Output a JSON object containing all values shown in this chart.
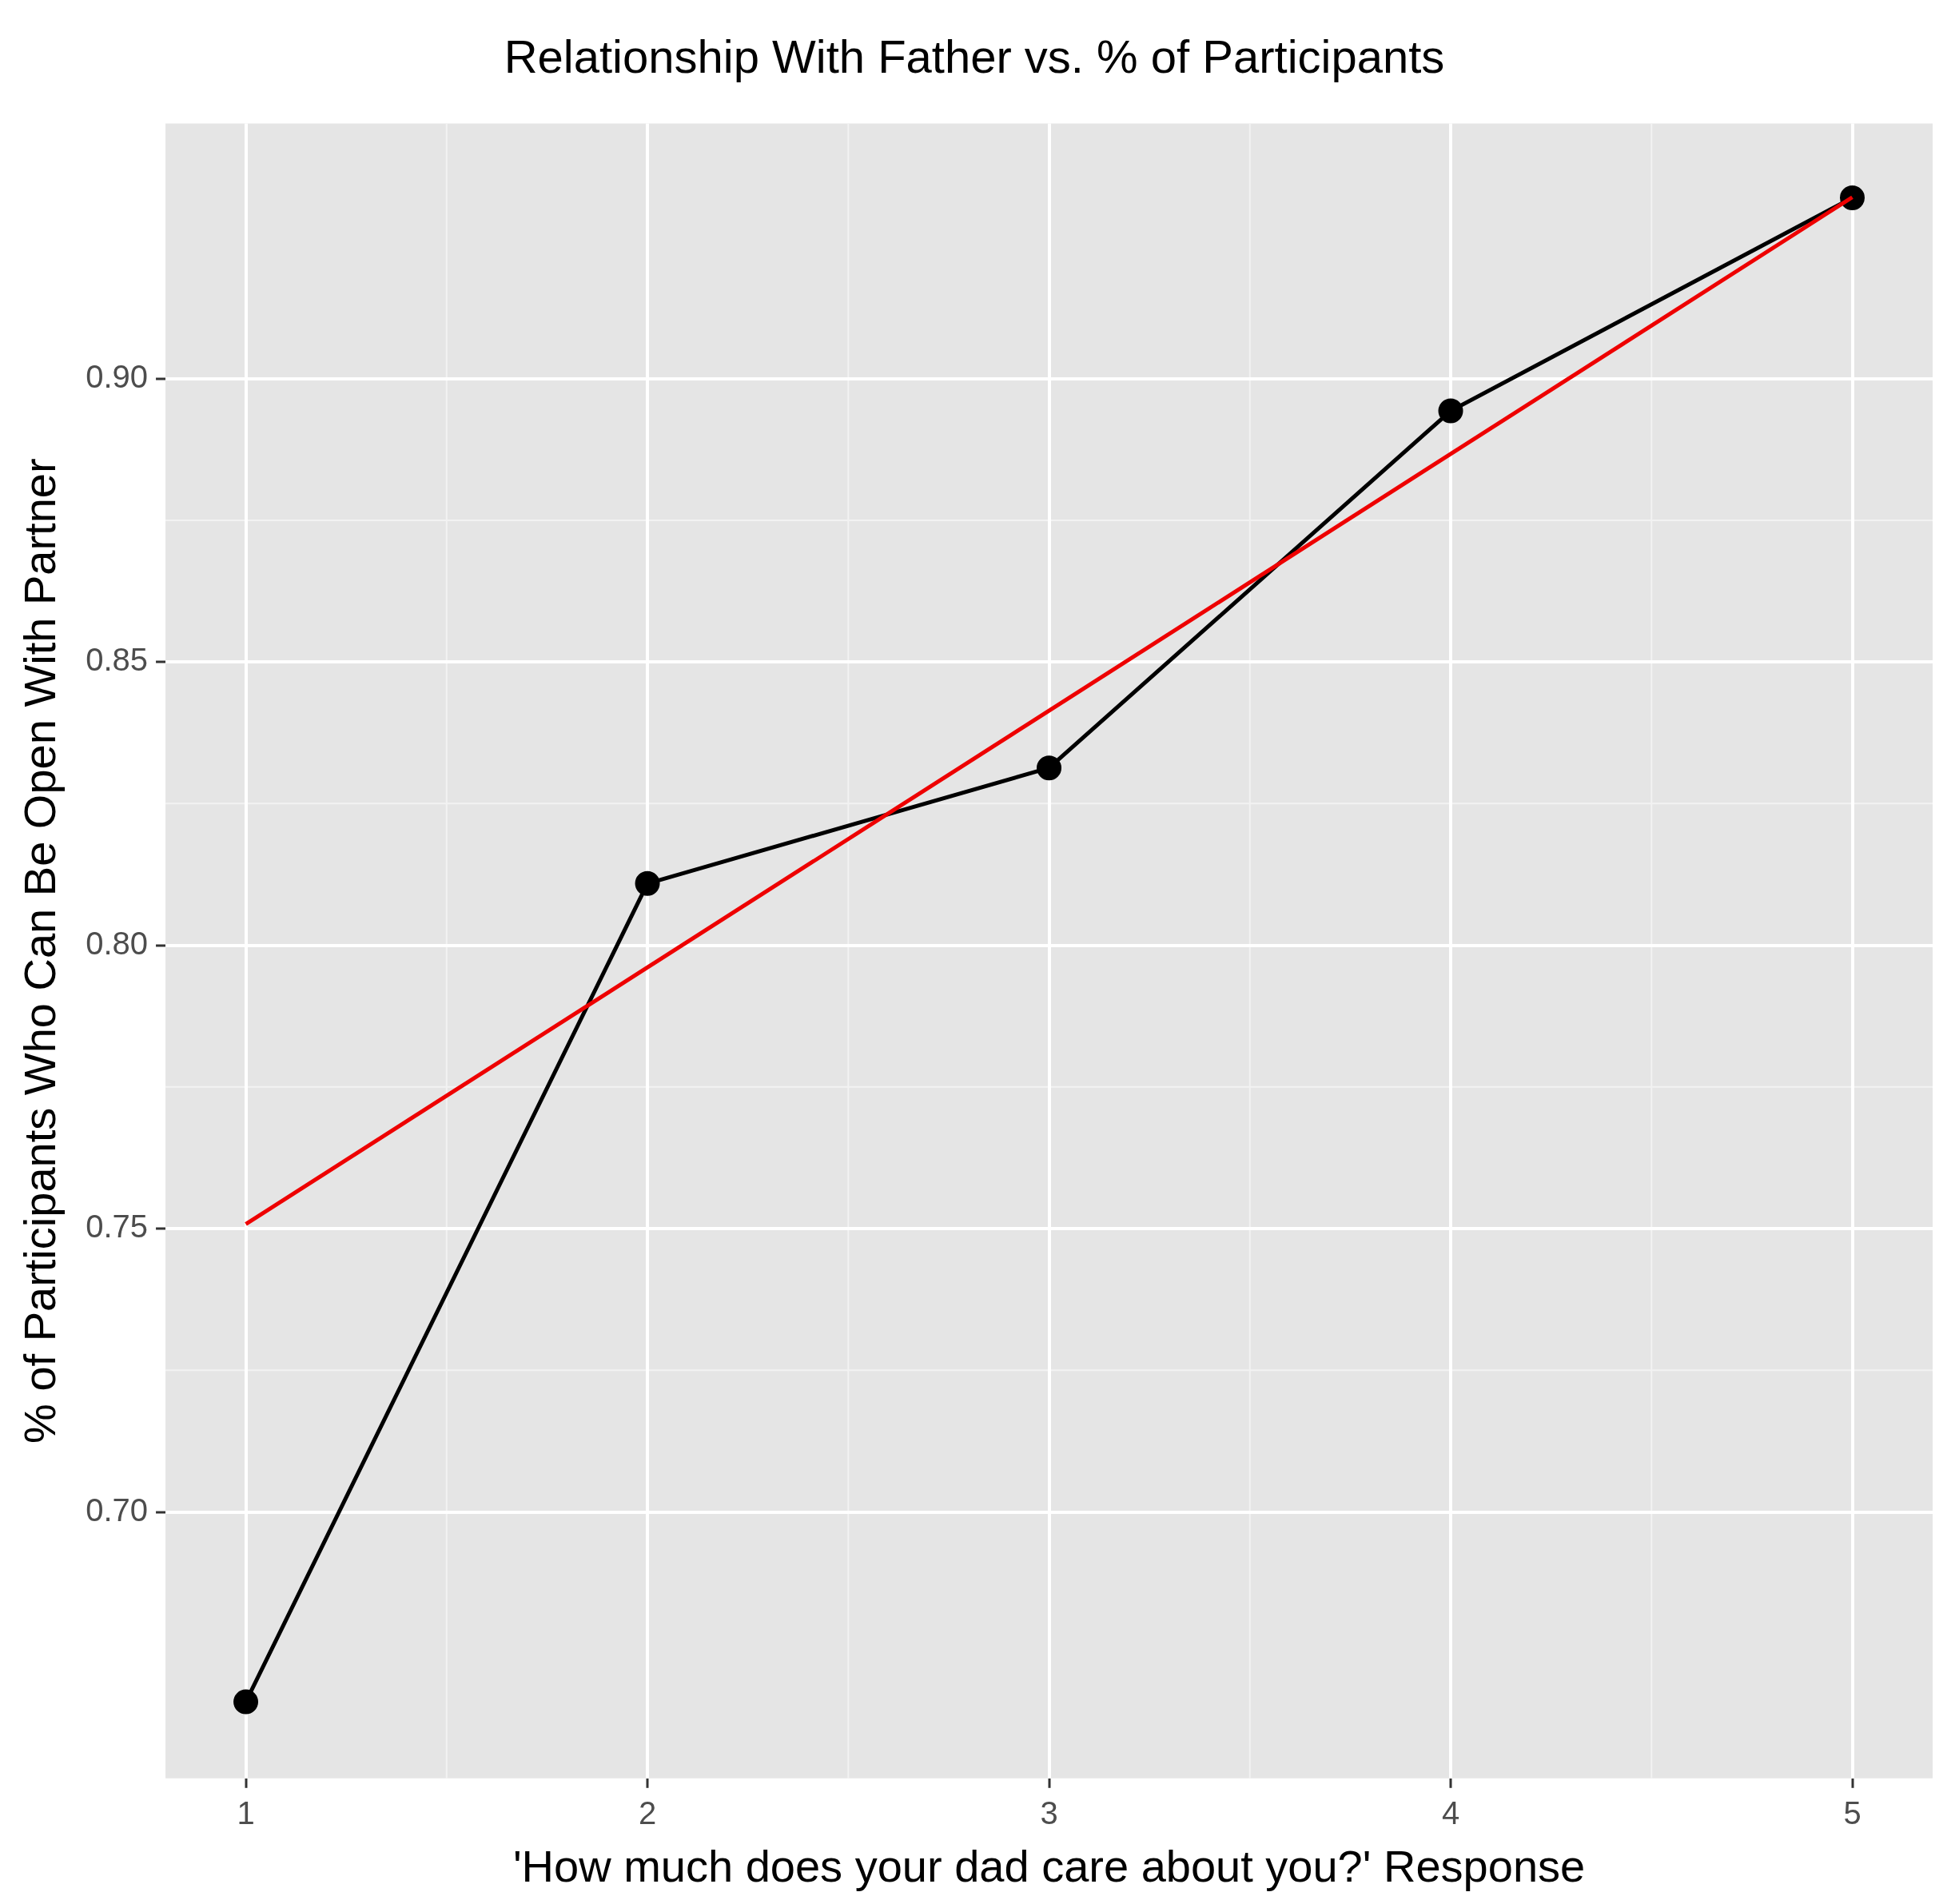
{
  "chart_data": {
    "type": "line",
    "title": "Relationship With Father vs. % of Participants",
    "xlabel": "'How much does your dad care about you?' Response",
    "ylabel": "% of Participants Who Can Be Open With Partner",
    "x": [
      1,
      2,
      3,
      4,
      5
    ],
    "series": [
      {
        "color": "#000000",
        "values": [
          0.6665,
          0.8109,
          0.8313,
          0.8943,
          0.9319
        ],
        "marker": "circle"
      },
      {
        "type": "line",
        "x": [
          1,
          5
        ],
        "color": "#ee0000",
        "values": [
          0.7508,
          0.932
        ],
        "marker": "none"
      }
    ],
    "xlim": [
      0.8,
      5.2
    ],
    "xticks": [
      1,
      2,
      3,
      4,
      5
    ],
    "ylim": [
      0.653,
      0.945
    ],
    "yticks": [
      {
        "value": 0.7,
        "label": "0.70"
      },
      {
        "value": 0.75,
        "label": "0.75"
      },
      {
        "value": 0.8,
        "label": "0.80"
      },
      {
        "value": 0.85,
        "label": "0.85"
      },
      {
        "value": 0.9,
        "label": "0.90"
      }
    ],
    "grid": true,
    "legend": false
  }
}
